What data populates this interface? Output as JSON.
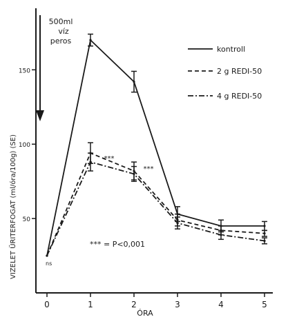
{
  "chart_data": {
    "type": "line",
    "ylabel": "VIZELET   ÜRITERFOGAT  (ml/óra/100g) (SE)",
    "xlabel": "ÓRA",
    "x": [
      0,
      1,
      2,
      3,
      4,
      5
    ],
    "x_ticks": [
      "0",
      "1",
      "2",
      "3",
      "4",
      "5"
    ],
    "y_ticks": [
      {
        "value": 50,
        "label": "50"
      },
      {
        "value": 100,
        "label": "100"
      },
      {
        "value": 150,
        "label": "150"
      }
    ],
    "ylim": [
      0,
      190
    ],
    "xlim": [
      0,
      5
    ],
    "grid": false,
    "legend_position": "top-right",
    "series": [
      {
        "name": "kontroll",
        "style": "solid",
        "values": [
          25,
          170,
          142,
          53,
          45,
          45
        ],
        "errors": [
          0,
          4,
          7,
          5,
          4,
          3
        ]
      },
      {
        "name": "2 g REDI-50",
        "style": "dashed",
        "values": [
          25,
          94,
          82,
          49,
          42,
          40
        ],
        "errors": [
          0,
          7,
          6,
          4,
          3,
          2
        ]
      },
      {
        "name": "4 g REDI-50",
        "style": "dashdot",
        "values": [
          25,
          88,
          80,
          47,
          39,
          35
        ],
        "errors": [
          0,
          6,
          5,
          4,
          3,
          2
        ]
      }
    ],
    "annotations": {
      "stimulus": "500ml\nvíz\nperos",
      "stars": "***",
      "significance": "*** = P<0,001",
      "start_label": "ns"
    }
  }
}
